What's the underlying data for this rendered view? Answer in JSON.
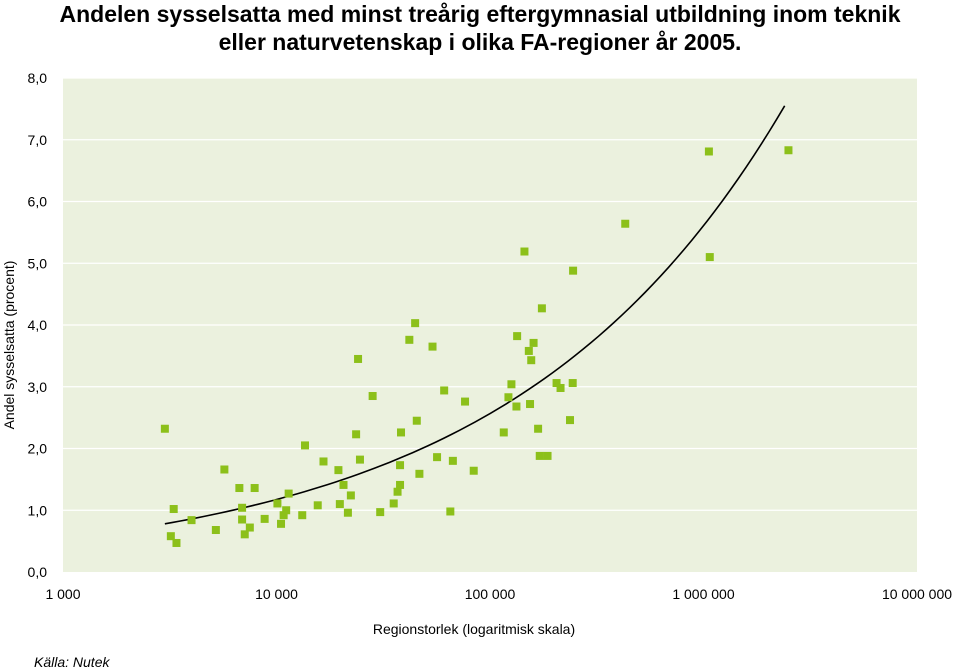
{
  "chart_data": {
    "type": "scatter",
    "title_lines": [
      "Andelen sysselsatta med minst treårig eftergymnasial utbildning inom teknik",
      "eller naturvetenskap i olika FA-regioner år 2005."
    ],
    "xlabel": "Regionstorlek (logaritmisk skala)",
    "ylabel": "Andel sysselsatta (procent)",
    "x_scale": "log",
    "xlim": [
      1000,
      10000000
    ],
    "ylim": [
      0,
      8
    ],
    "x_ticks": [
      1000,
      10000,
      100000,
      1000000,
      10000000
    ],
    "x_tick_labels": [
      "1 000",
      "10 000",
      "100 000",
      "1 000 000",
      "10 000 000"
    ],
    "y_ticks": [
      0,
      1,
      2,
      3,
      4,
      5,
      6,
      7,
      8
    ],
    "y_tick_labels": [
      "0,0",
      "1,0",
      "2,0",
      "3,0",
      "4,0",
      "5,0",
      "6,0",
      "7,0",
      "8,0"
    ],
    "grid": "horizontal",
    "plot_background": "#ebf1de",
    "marker_color": "#8cc01a",
    "gridline_color": "#ffffff",
    "trendline": {
      "type": "exponential",
      "color": "#000000",
      "x_range": [
        3000,
        2400000
      ],
      "y_at_start": 0.78,
      "y_at_end": 7.55
    },
    "points": [
      {
        "x": 3000,
        "y": 2.32
      },
      {
        "x": 3200,
        "y": 0.58
      },
      {
        "x": 3300,
        "y": 1.02
      },
      {
        "x": 3400,
        "y": 0.47
      },
      {
        "x": 4000,
        "y": 0.84
      },
      {
        "x": 5200,
        "y": 0.68
      },
      {
        "x": 5700,
        "y": 1.66
      },
      {
        "x": 6700,
        "y": 1.36
      },
      {
        "x": 6900,
        "y": 1.04
      },
      {
        "x": 6900,
        "y": 0.85
      },
      {
        "x": 7100,
        "y": 0.61
      },
      {
        "x": 7500,
        "y": 0.72
      },
      {
        "x": 7900,
        "y": 1.36
      },
      {
        "x": 8800,
        "y": 0.86
      },
      {
        "x": 10100,
        "y": 1.11
      },
      {
        "x": 10500,
        "y": 0.78
      },
      {
        "x": 10800,
        "y": 0.92
      },
      {
        "x": 11100,
        "y": 1.0
      },
      {
        "x": 11400,
        "y": 1.27
      },
      {
        "x": 13200,
        "y": 0.92
      },
      {
        "x": 13600,
        "y": 2.05
      },
      {
        "x": 15600,
        "y": 1.08
      },
      {
        "x": 16600,
        "y": 1.79
      },
      {
        "x": 19500,
        "y": 1.65
      },
      {
        "x": 19800,
        "y": 1.1
      },
      {
        "x": 20600,
        "y": 1.41
      },
      {
        "x": 21600,
        "y": 0.96
      },
      {
        "x": 22300,
        "y": 1.24
      },
      {
        "x": 23600,
        "y": 2.23
      },
      {
        "x": 24100,
        "y": 3.45
      },
      {
        "x": 24600,
        "y": 1.82
      },
      {
        "x": 28200,
        "y": 2.85
      },
      {
        "x": 30600,
        "y": 0.97
      },
      {
        "x": 35400,
        "y": 1.11
      },
      {
        "x": 36900,
        "y": 1.3
      },
      {
        "x": 37900,
        "y": 1.41
      },
      {
        "x": 37900,
        "y": 1.73
      },
      {
        "x": 38300,
        "y": 2.26
      },
      {
        "x": 41900,
        "y": 3.76
      },
      {
        "x": 44600,
        "y": 4.03
      },
      {
        "x": 45400,
        "y": 2.45
      },
      {
        "x": 46700,
        "y": 1.59
      },
      {
        "x": 53800,
        "y": 3.65
      },
      {
        "x": 56500,
        "y": 1.86
      },
      {
        "x": 61000,
        "y": 2.94
      },
      {
        "x": 65200,
        "y": 0.98
      },
      {
        "x": 67000,
        "y": 1.8
      },
      {
        "x": 76400,
        "y": 2.76
      },
      {
        "x": 83900,
        "y": 1.64
      },
      {
        "x": 116000,
        "y": 2.26
      },
      {
        "x": 122000,
        "y": 2.83
      },
      {
        "x": 126000,
        "y": 3.04
      },
      {
        "x": 133000,
        "y": 2.68
      },
      {
        "x": 134000,
        "y": 3.82
      },
      {
        "x": 145000,
        "y": 5.19
      },
      {
        "x": 152000,
        "y": 3.58
      },
      {
        "x": 154000,
        "y": 2.72
      },
      {
        "x": 156000,
        "y": 3.43
      },
      {
        "x": 160000,
        "y": 3.71
      },
      {
        "x": 168000,
        "y": 2.32
      },
      {
        "x": 171000,
        "y": 1.88
      },
      {
        "x": 175000,
        "y": 4.27
      },
      {
        "x": 186000,
        "y": 1.88
      },
      {
        "x": 205000,
        "y": 3.06
      },
      {
        "x": 214000,
        "y": 2.98
      },
      {
        "x": 237000,
        "y": 2.46
      },
      {
        "x": 244000,
        "y": 3.06
      },
      {
        "x": 245000,
        "y": 4.88
      },
      {
        "x": 430000,
        "y": 5.64
      },
      {
        "x": 1060000,
        "y": 6.81
      },
      {
        "x": 1070000,
        "y": 5.1
      },
      {
        "x": 2500000,
        "y": 6.83
      }
    ]
  },
  "source": "Källa: Nutek"
}
